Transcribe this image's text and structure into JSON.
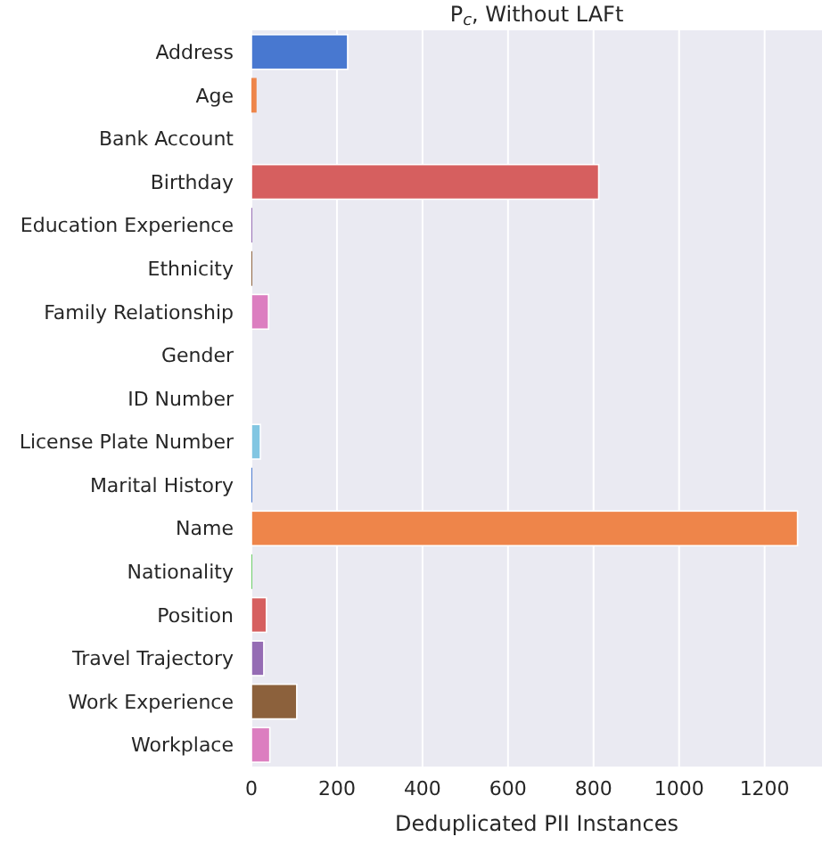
{
  "chart_data": {
    "type": "bar",
    "orientation": "horizontal",
    "title": "P$_{c}$, Without LAFt",
    "xlabel": "Deduplicated PII Instances",
    "categories": [
      "Address",
      "Age",
      "Bank Account",
      "Birthday",
      "Education Experience",
      "Ethnicity",
      "Family Relationship",
      "Gender",
      "ID Number",
      "License Plate Number",
      "Marital History",
      "Name",
      "Nationality",
      "Position",
      "Travel Trajectory",
      "Work Experience",
      "Workplace"
    ],
    "values": [
      225,
      12,
      0,
      812,
      2,
      2,
      40,
      0,
      0,
      21,
      2,
      1277,
      2,
      35,
      29,
      106,
      43
    ],
    "colors": [
      "#4878d0",
      "#ee854a",
      "#6acc64",
      "#d65f5f",
      "#956cb4",
      "#8c613c",
      "#dc7ec0",
      "#797979",
      "#d5bb67",
      "#82c6e2",
      "#4878d0",
      "#ee854a",
      "#6acc64",
      "#d65f5f",
      "#956cb4",
      "#8c613c",
      "#dc7ec0"
    ],
    "xlim": [
      0,
      1330
    ],
    "xticks": [
      0,
      200,
      400,
      600,
      800,
      1000,
      1200
    ],
    "grid": "x"
  }
}
